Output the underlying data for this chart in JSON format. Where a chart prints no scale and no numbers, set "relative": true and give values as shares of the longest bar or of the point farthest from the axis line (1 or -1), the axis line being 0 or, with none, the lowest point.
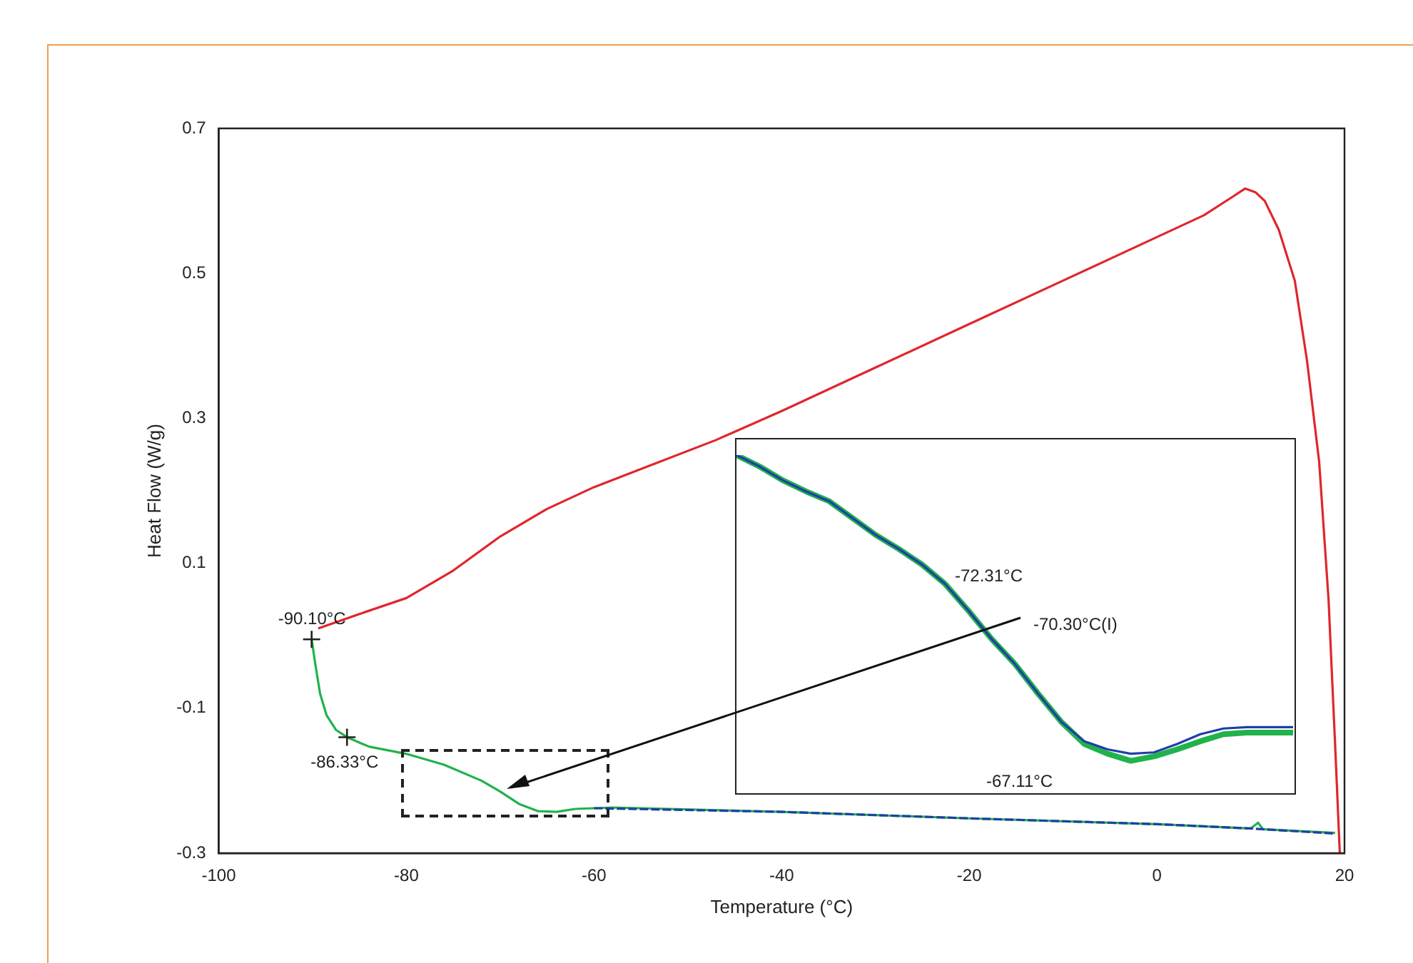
{
  "chart_data": [
    {
      "type": "line",
      "xlabel": "Temperature (°C)",
      "ylabel": "Heat Flow (W/g)",
      "xlim": [
        -100,
        20
      ],
      "xticks": [
        -100,
        -80,
        -60,
        -40,
        -20,
        0,
        20
      ],
      "ylim": [
        -0.3,
        0.7
      ],
      "yticks": [
        -0.3,
        -0.1,
        0.1,
        0.3,
        0.5,
        0.7
      ],
      "grid": false,
      "legend": false,
      "marker": "none",
      "series": [
        {
          "color": "#e0262b",
          "line_style": "solid",
          "x": [
            -89.4,
            -85,
            -80,
            -75,
            -70,
            -65,
            -60,
            -55,
            -47,
            -40,
            -30,
            -20,
            -10,
            0,
            5,
            8,
            9.4,
            10.5,
            11.5,
            13,
            14.7,
            16,
            17.3,
            18.3,
            19,
            19.5
          ],
          "values": [
            0.01,
            0.03,
            0.052,
            0.09,
            0.137,
            0.175,
            0.205,
            0.23,
            0.27,
            0.31,
            0.37,
            0.43,
            0.49,
            0.55,
            0.58,
            0.605,
            0.617,
            0.612,
            0.6,
            0.56,
            0.49,
            0.38,
            0.24,
            0.05,
            -0.15,
            -0.3
          ]
        },
        {
          "color": "#22b24c",
          "line_style": "solid",
          "x": [
            -90.1,
            -89.7,
            -89.2,
            -88.5,
            -87.5,
            -86.33,
            -84,
            -80,
            -76,
            -72,
            -70,
            -68,
            -66,
            -64,
            -62,
            -58,
            -40,
            -20,
            0,
            10,
            10.8,
            11.3,
            19
          ],
          "values": [
            -0.005,
            -0.04,
            -0.08,
            -0.11,
            -0.13,
            -0.14,
            -0.153,
            -0.163,
            -0.178,
            -0.2,
            -0.215,
            -0.232,
            -0.242,
            -0.243,
            -0.239,
            -0.237,
            -0.243,
            -0.252,
            -0.26,
            -0.266,
            -0.258,
            -0.267,
            -0.272
          ]
        },
        {
          "color": "#1f3fa8",
          "line_style": "dashed",
          "x": [
            -60,
            -40,
            -20,
            0,
            10,
            19
          ],
          "values": [
            -0.238,
            -0.243,
            -0.252,
            -0.26,
            -0.266,
            -0.273
          ]
        }
      ],
      "annotations": [
        {
          "text": "-90.10°C",
          "x": -90.1,
          "y": -0.005
        },
        {
          "text": "-86.33°C",
          "x": -86.33,
          "y": -0.14
        }
      ]
    },
    {
      "type": "line",
      "relative": true,
      "marker": "none",
      "legend": false,
      "categories": [
        null,
        null,
        null,
        null,
        null,
        null,
        null,
        null,
        null,
        null,
        null,
        null,
        null,
        null,
        null,
        null,
        null,
        null,
        null,
        null,
        null,
        null,
        null,
        null,
        null
      ],
      "series": [
        {
          "color": "#22b24c",
          "line_style": "solid",
          "values": [
            1,
            0.966,
            0.925,
            0.892,
            0.863,
            0.813,
            0.763,
            0.721,
            0.675,
            0.617,
            0.538,
            0.454,
            0.38,
            0.292,
            0.208,
            0.142,
            0.113,
            0.092,
            0.105,
            0.126,
            0.15,
            0.171,
            0.176,
            0.176,
            0.176
          ]
        },
        {
          "color": "#1f3fa8",
          "line_style": "solid",
          "values": [
            1,
            0.966,
            0.925,
            0.892,
            0.863,
            0.813,
            0.763,
            0.721,
            0.675,
            0.617,
            0.538,
            0.454,
            0.38,
            0.292,
            0.208,
            0.15,
            0.126,
            0.113,
            0.117,
            0.142,
            0.171,
            0.188,
            0.192,
            0.192,
            0.192
          ]
        }
      ],
      "annotations": [
        "-72.31°C",
        "-70.30°C(I)",
        "-67.11°C"
      ]
    }
  ]
}
